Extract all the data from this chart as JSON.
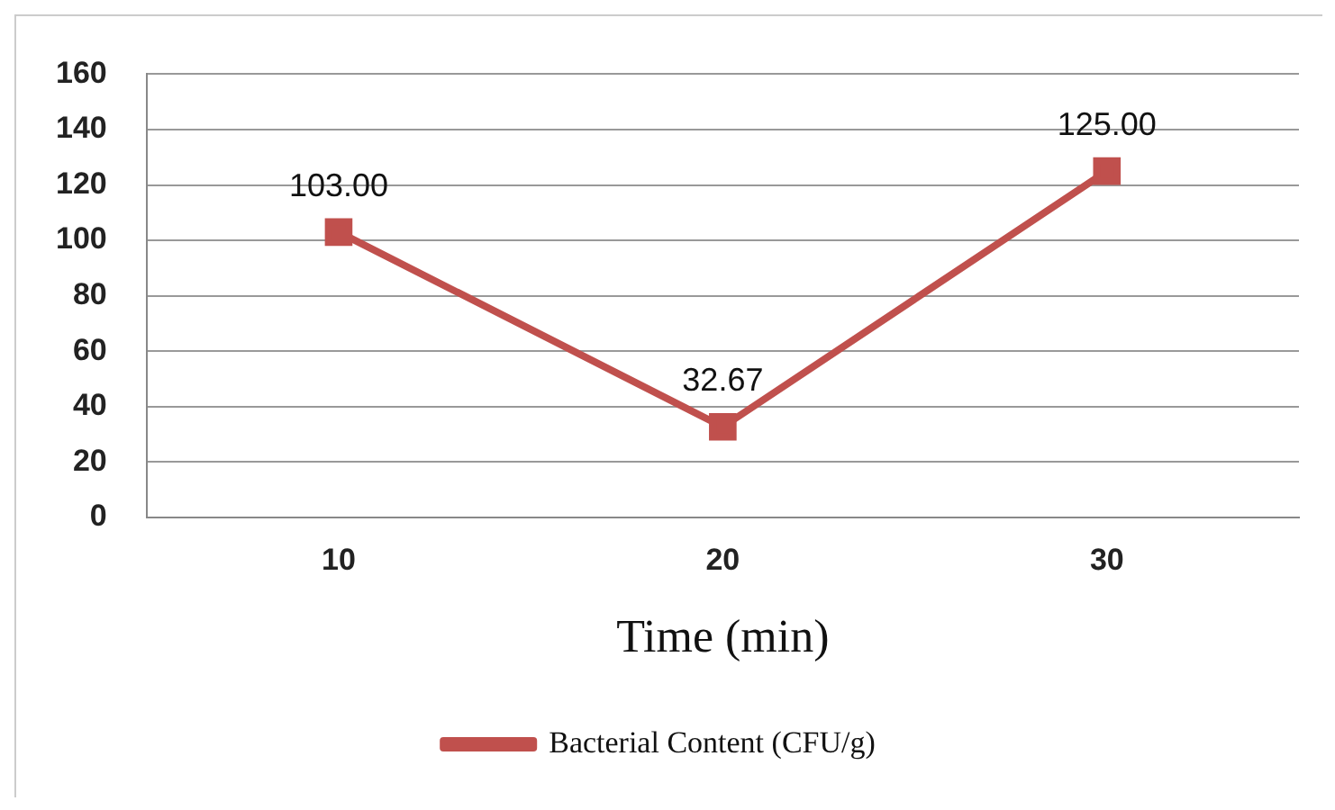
{
  "chart_data": {
    "type": "line",
    "xlabel": "Time (min)",
    "categories": [
      "10",
      "20",
      "30"
    ],
    "series": [
      {
        "name": "Bacterial Content (CFU/g)",
        "color": "#c0504d",
        "values": [
          103,
          32.67,
          125
        ],
        "value_labels": [
          "103.00",
          "32.67",
          "125.00"
        ]
      }
    ],
    "ylim": [
      0,
      160
    ],
    "yticks": [
      0,
      20,
      40,
      60,
      80,
      100,
      120,
      140,
      160
    ],
    "grid": "y",
    "legend": "bottom",
    "marker": "square",
    "line_style": "solid"
  }
}
